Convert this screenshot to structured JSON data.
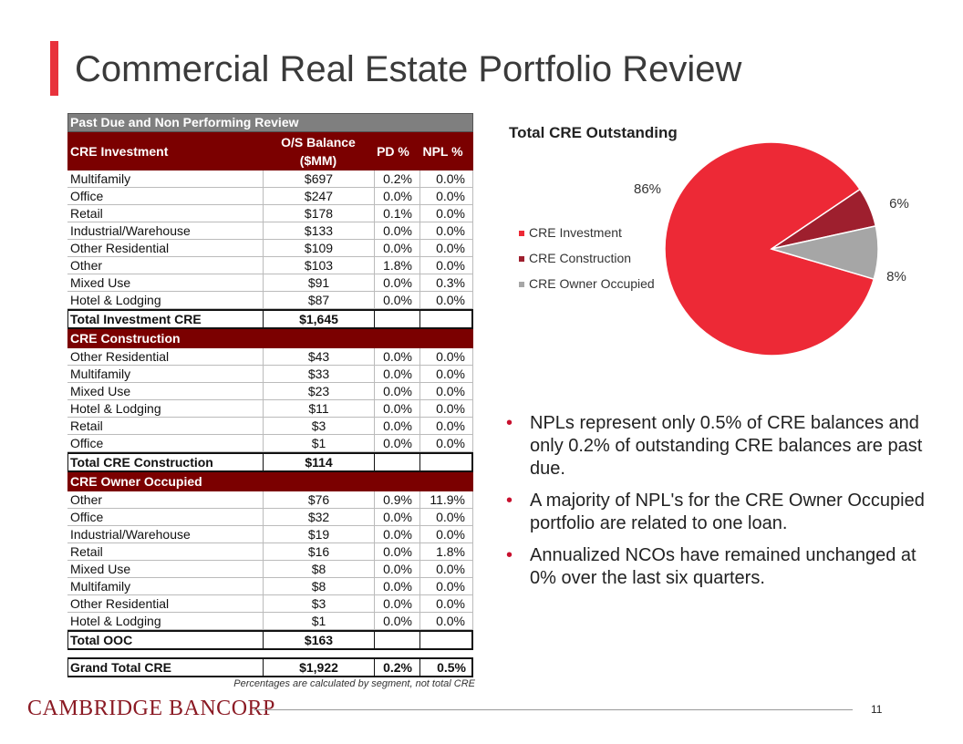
{
  "header": {
    "title": "Commercial Real Estate Portfolio Review"
  },
  "table": {
    "title": "Past Due and Non Performing Review",
    "columns": [
      "CRE Investment",
      "O/S Balance ($MM)",
      "PD %",
      "NPL %"
    ],
    "sections": [
      {
        "rows": [
          [
            "Multifamily",
            "$697",
            "0.2%",
            "0.0%"
          ],
          [
            "Office",
            "$247",
            "0.0%",
            "0.0%"
          ],
          [
            "Retail",
            "$178",
            "0.1%",
            "0.0%"
          ],
          [
            "Industrial/Warehouse",
            "$133",
            "0.0%",
            "0.0%"
          ],
          [
            "Other Residential",
            "$109",
            "0.0%",
            "0.0%"
          ],
          [
            "Other",
            "$103",
            "1.8%",
            "0.0%"
          ],
          [
            "Mixed Use",
            "$91",
            "0.0%",
            "0.3%"
          ],
          [
            "Hotel & Lodging",
            "$87",
            "0.0%",
            "0.0%"
          ]
        ],
        "total": [
          "Total Investment CRE",
          "$1,645"
        ]
      },
      {
        "heading": "CRE Construction",
        "rows": [
          [
            "Other Residential",
            "$43",
            "0.0%",
            "0.0%"
          ],
          [
            "Multifamily",
            "$33",
            "0.0%",
            "0.0%"
          ],
          [
            "Mixed Use",
            "$23",
            "0.0%",
            "0.0%"
          ],
          [
            "Hotel & Lodging",
            "$11",
            "0.0%",
            "0.0%"
          ],
          [
            "Retail",
            "$3",
            "0.0%",
            "0.0%"
          ],
          [
            "Office",
            "$1",
            "0.0%",
            "0.0%"
          ]
        ],
        "total": [
          "Total CRE Construction",
          "$114"
        ]
      },
      {
        "heading": "CRE Owner Occupied",
        "rows": [
          [
            "Other",
            "$76",
            "0.9%",
            "11.9%"
          ],
          [
            "Office",
            "$32",
            "0.0%",
            "0.0%"
          ],
          [
            "Industrial/Warehouse",
            "$19",
            "0.0%",
            "0.0%"
          ],
          [
            "Retail",
            "$16",
            "0.0%",
            "1.8%"
          ],
          [
            "Mixed Use",
            "$8",
            "0.0%",
            "0.0%"
          ],
          [
            "Multifamily",
            "$8",
            "0.0%",
            "0.0%"
          ],
          [
            "Other Residential",
            "$3",
            "0.0%",
            "0.0%"
          ],
          [
            "Hotel & Lodging",
            "$1",
            "0.0%",
            "0.0%"
          ]
        ],
        "total": [
          "Total OOC",
          "$163"
        ]
      }
    ],
    "grand_total": [
      "Grand Total CRE",
      "$1,922",
      "0.2%",
      "0.5%"
    ],
    "footnote": "Percentages are calculated by segment, not total CRE"
  },
  "chart_data": {
    "type": "pie",
    "title": "Total CRE Outstanding",
    "categories": [
      "CRE Investment",
      "CRE Construction",
      "CRE Owner Occupied"
    ],
    "values": [
      86,
      6,
      8
    ],
    "value_labels": [
      "86%",
      "6%",
      "8%"
    ],
    "colors": [
      "#ed2936",
      "#9e1f2e",
      "#a6a6a6"
    ]
  },
  "bullets": [
    "NPLs represent only 0.5% of CRE balances and only 0.2% of outstanding CRE balances are past due.",
    "A majority of NPL's for the CRE Owner Occupied portfolio are related to one loan.",
    "Annualized NCOs have remained unchanged at 0% over the last six quarters."
  ],
  "footer": {
    "logo": "CAMBRIDGE BANCORP",
    "page": "11"
  }
}
